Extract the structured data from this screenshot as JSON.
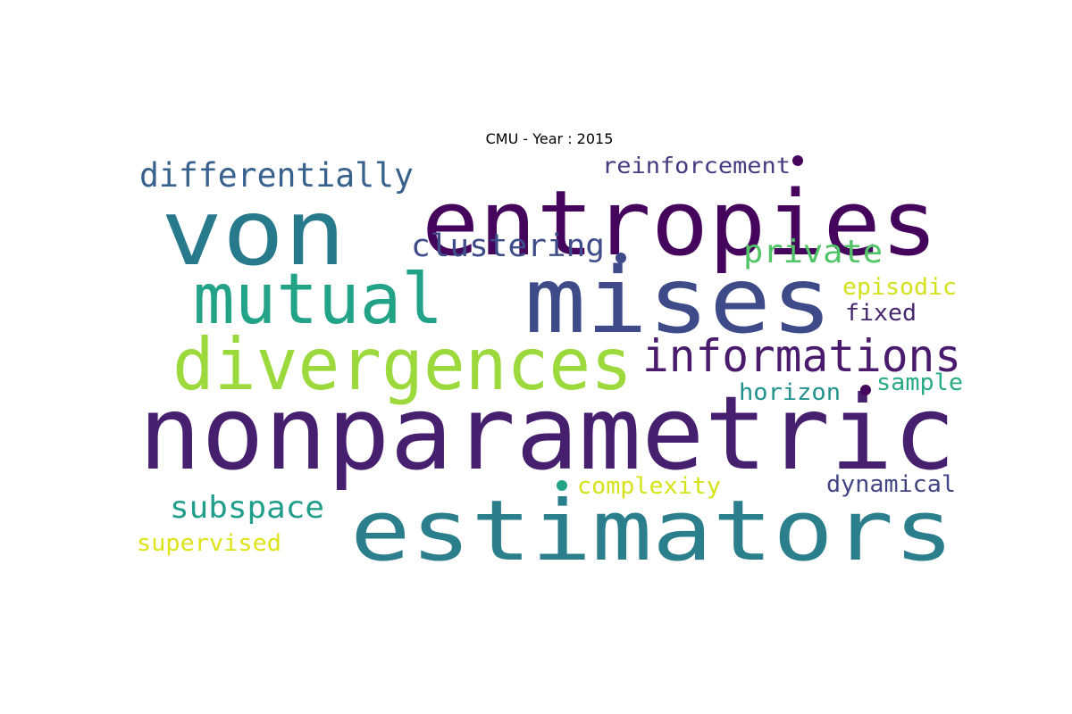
{
  "title": "CMU - Year : 2015",
  "words": [
    {
      "text": "nonparametric",
      "color": "#46206f"
    },
    {
      "text": "estimators",
      "color": "#2b7f8c"
    },
    {
      "text": "entropies",
      "color": "#45055c"
    },
    {
      "text": "mises",
      "color": "#3f4b89"
    },
    {
      "text": "von",
      "color": "#277a8c"
    },
    {
      "text": "divergences",
      "color": "#9cd93c"
    },
    {
      "text": "mutual",
      "color": "#22a287"
    },
    {
      "text": "informations",
      "color": "#4a1a6c"
    },
    {
      "text": "differentially",
      "color": "#38628d"
    },
    {
      "text": "clustering",
      "color": "#3e4d8a"
    },
    {
      "text": "private",
      "color": "#52c468"
    },
    {
      "text": "subspace",
      "color": "#209d8b"
    },
    {
      "text": "reinforcement",
      "color": "#463a80"
    },
    {
      "text": "episodic",
      "color": "#d2e11b"
    },
    {
      "text": "fixed",
      "color": "#47266f"
    },
    {
      "text": "horizon",
      "color": "#22928c"
    },
    {
      "text": "sample",
      "color": "#27ab83"
    },
    {
      "text": "complexity",
      "color": "#d6e31a"
    },
    {
      "text": "dynamical",
      "color": "#414583"
    },
    {
      "text": "supervised",
      "color": "#dde318"
    }
  ],
  "dots": [
    {
      "color": "#45055c"
    },
    {
      "color": "#3f4b89"
    },
    {
      "color": "#45055c"
    },
    {
      "color": "#22a287"
    }
  ]
}
